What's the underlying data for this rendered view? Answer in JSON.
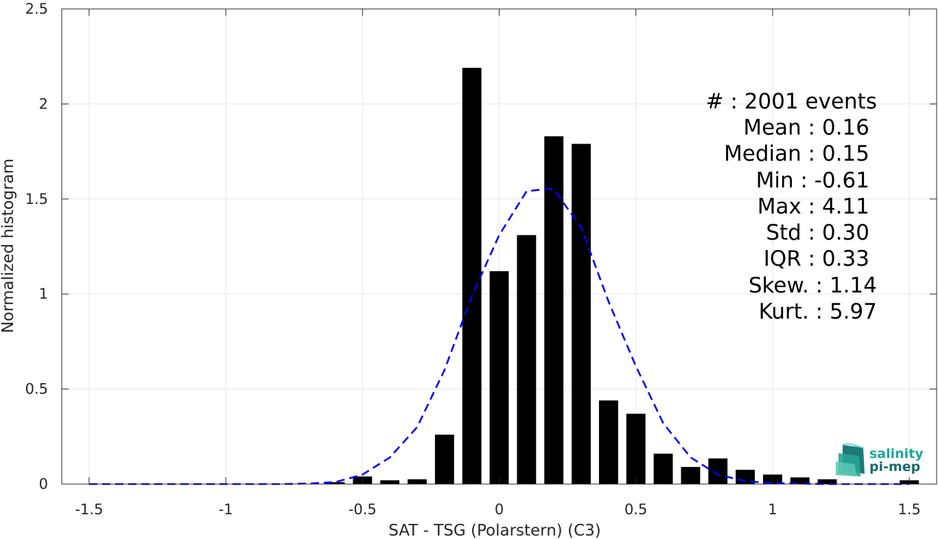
{
  "chart_data": {
    "type": "bar",
    "xlabel": "SAT - TSG (Polarstern) (C3)",
    "ylabel": "Normalized histogram",
    "xlim": [
      -1.6,
      1.6
    ],
    "ylim": [
      0,
      2.5
    ],
    "xticks": [
      -1.5,
      -1,
      -0.5,
      0,
      0.5,
      1,
      1.5
    ],
    "xtick_labels": [
      "-1.5",
      "-1",
      "-0.5",
      "0",
      "0.5",
      "1",
      "1.5"
    ],
    "yticks": [
      0,
      0.5,
      1,
      1.5,
      2,
      2.5
    ],
    "ytick_labels": [
      "0",
      "0.5",
      "1",
      "1.5",
      "2",
      "2.5"
    ],
    "grid": true,
    "bar_width": 0.07,
    "bars": {
      "x": [
        -0.6,
        -0.5,
        -0.4,
        -0.3,
        -0.2,
        -0.1,
        0.0,
        0.1,
        0.2,
        0.3,
        0.4,
        0.5,
        0.6,
        0.7,
        0.8,
        0.9,
        1.0,
        1.1,
        1.2,
        1.5
      ],
      "values": [
        0.01,
        0.04,
        0.02,
        0.025,
        0.26,
        2.19,
        1.12,
        1.31,
        1.83,
        1.79,
        0.44,
        0.37,
        0.16,
        0.09,
        0.135,
        0.075,
        0.05,
        0.035,
        0.025,
        0.02
      ],
      "color": "#000000"
    },
    "fit_curve": {
      "style": "dashed",
      "color": "#0000ff",
      "x": [
        -1.5,
        -1.2,
        -1.0,
        -0.8,
        -0.7,
        -0.6,
        -0.5,
        -0.4,
        -0.3,
        -0.2,
        -0.1,
        0.0,
        0.1,
        0.18,
        0.2,
        0.3,
        0.4,
        0.5,
        0.6,
        0.7,
        0.8,
        0.9,
        1.0,
        1.2,
        1.5
      ],
      "y": [
        0.0,
        0.0,
        0.0,
        0.0,
        0.003,
        0.01,
        0.05,
        0.14,
        0.3,
        0.6,
        0.99,
        1.31,
        1.54,
        1.555,
        1.55,
        1.35,
        0.96,
        0.62,
        0.32,
        0.14,
        0.05,
        0.015,
        0.005,
        0.0,
        0.0
      ]
    },
    "stats": [
      {
        "label": "#  : 2001 events"
      },
      {
        "label": "Mean : 0.16"
      },
      {
        "label": "Median : 0.15"
      },
      {
        "label": "Min : -0.61"
      },
      {
        "label": "Max : 4.11"
      },
      {
        "label": "Std : 0.30"
      },
      {
        "label": "IQR : 0.33"
      },
      {
        "label": "Skew. : 1.14"
      },
      {
        "label": "Kurt. : 5.97"
      }
    ]
  },
  "logo": {
    "line1": "salinity",
    "line2": "pi-mep",
    "color1": "#1aa89a",
    "color2": "#1b6b6a"
  }
}
